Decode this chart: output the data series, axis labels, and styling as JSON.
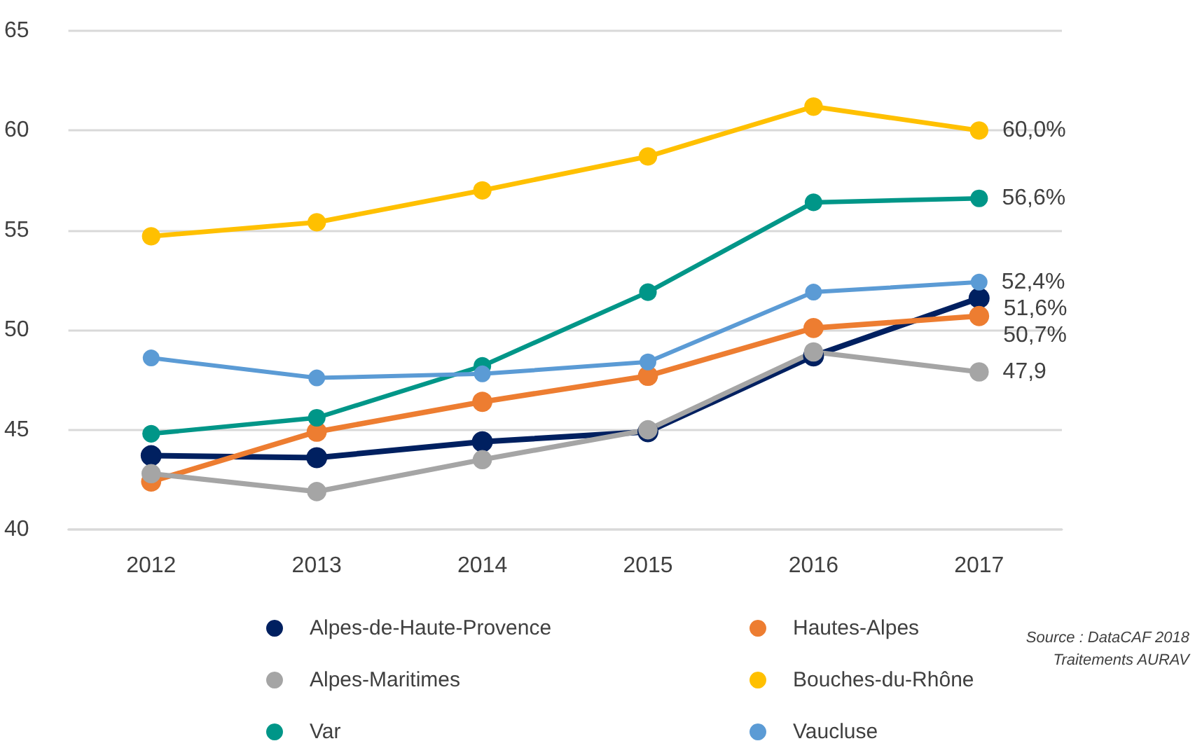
{
  "chart_data": {
    "type": "line",
    "categories": [
      "2012",
      "2013",
      "2014",
      "2015",
      "2016",
      "2017"
    ],
    "ylim": [
      40,
      65
    ],
    "yticks": [
      40,
      45,
      50,
      55,
      60,
      65
    ],
    "grid": "y",
    "legend": "bottom",
    "marker": "circle",
    "line_style": "solid",
    "series": [
      {
        "name": "Alpes-de-Haute-Provence",
        "color": "#002060",
        "values": [
          43.7,
          43.6,
          44.4,
          44.9,
          48.7,
          51.6
        ],
        "value_labels": [
          null,
          null,
          null,
          null,
          null,
          "51,6%"
        ]
      },
      {
        "name": "Hautes-Alpes",
        "color": "#ed7d31",
        "values": [
          42.4,
          44.9,
          46.4,
          47.7,
          50.1,
          50.7
        ],
        "value_labels": [
          null,
          null,
          null,
          null,
          null,
          "50,7%"
        ]
      },
      {
        "name": "Alpes-Maritimes",
        "color": "#a5a5a5",
        "values": [
          42.8,
          41.9,
          43.5,
          45.0,
          48.9,
          47.9
        ],
        "value_labels": [
          null,
          null,
          null,
          null,
          null,
          "47,9"
        ]
      },
      {
        "name": "Bouches-du-Rhône",
        "color": "#ffc000",
        "values": [
          54.7,
          55.4,
          57.0,
          58.7,
          61.2,
          60.0
        ],
        "value_labels": [
          null,
          null,
          null,
          null,
          null,
          "60,0%"
        ]
      },
      {
        "name": "Var",
        "color": "#009688",
        "values": [
          44.8,
          45.6,
          48.2,
          51.9,
          56.4,
          56.6
        ],
        "value_labels": [
          null,
          null,
          null,
          null,
          null,
          "56,6%"
        ]
      },
      {
        "name": "Vaucluse",
        "color": "#5b9bd5",
        "values": [
          48.6,
          47.6,
          47.8,
          48.4,
          51.9,
          52.4
        ],
        "value_labels": [
          null,
          null,
          null,
          null,
          null,
          "52,4%"
        ]
      }
    ],
    "annotations": [
      "Source : DataCAF 2018",
      "Traitements AURAV"
    ]
  }
}
